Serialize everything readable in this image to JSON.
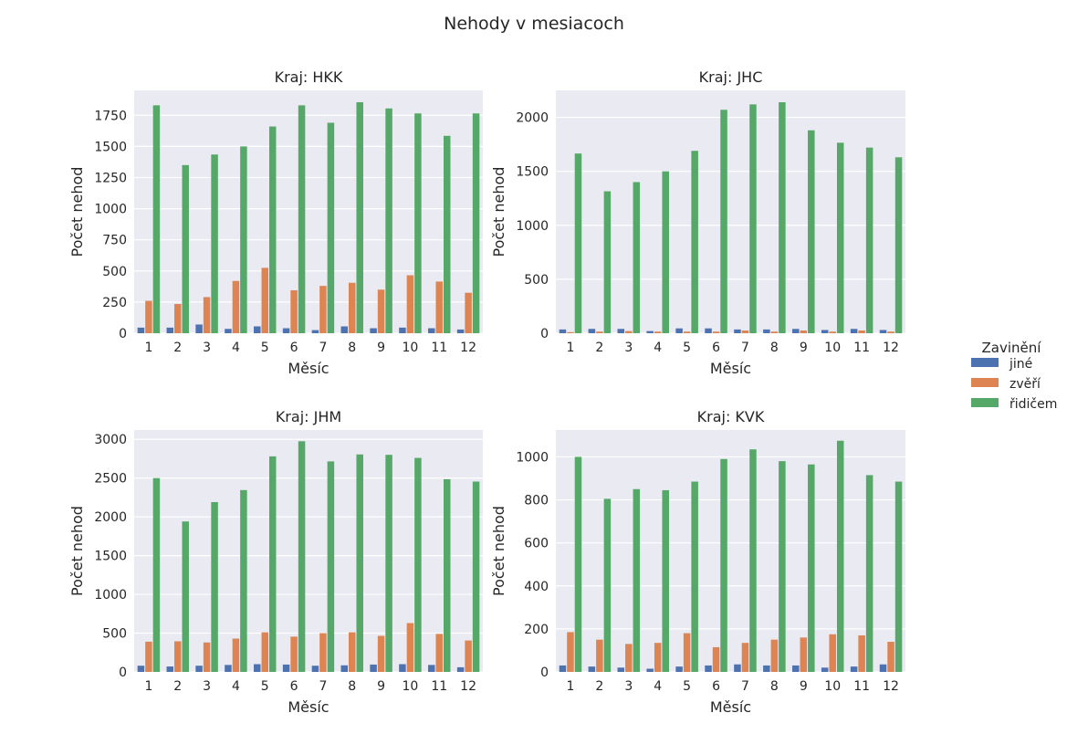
{
  "figure": {
    "title": "Nehody v mesiacoch",
    "legend_title": "Zavinění",
    "legend_placement": "right",
    "colors": {
      "jiné": "#4c72b0",
      "zvěří": "#dd8452",
      "řidičem": "#55a868"
    }
  },
  "chart_data": [
    {
      "type": "bar",
      "title": "Kraj: HKK",
      "xlabel": "Měsíc",
      "ylabel": "Počet nehod",
      "categories": [
        "1",
        "2",
        "3",
        "4",
        "5",
        "6",
        "7",
        "8",
        "9",
        "10",
        "11",
        "12"
      ],
      "ylim": [
        0,
        1950
      ],
      "yticks": [
        0,
        250,
        500,
        750,
        1000,
        1250,
        1500,
        1750
      ],
      "grid": true,
      "series": [
        {
          "name": "jiné",
          "values": [
            45,
            45,
            70,
            35,
            55,
            40,
            25,
            55,
            40,
            45,
            40,
            30
          ]
        },
        {
          "name": "zvěří",
          "values": [
            260,
            235,
            290,
            420,
            525,
            345,
            380,
            405,
            350,
            465,
            415,
            325
          ]
        },
        {
          "name": "řidičem",
          "values": [
            1830,
            1350,
            1435,
            1500,
            1660,
            1830,
            1690,
            1855,
            1805,
            1765,
            1585,
            1765
          ]
        }
      ]
    },
    {
      "type": "bar",
      "title": "Kraj: JHC",
      "xlabel": "Měsíc",
      "ylabel": "Počet nehod",
      "categories": [
        "1",
        "2",
        "3",
        "4",
        "5",
        "6",
        "7",
        "8",
        "9",
        "10",
        "11",
        "12"
      ],
      "ylim": [
        0,
        2250
      ],
      "yticks": [
        0,
        500,
        1000,
        1500,
        2000
      ],
      "grid": true,
      "series": [
        {
          "name": "jiné",
          "values": [
            35,
            40,
            40,
            20,
            45,
            45,
            35,
            35,
            40,
            30,
            40,
            30
          ]
        },
        {
          "name": "zvěří",
          "values": [
            10,
            15,
            20,
            15,
            15,
            15,
            25,
            15,
            25,
            15,
            25,
            15
          ]
        },
        {
          "name": "řidičem",
          "values": [
            1665,
            1315,
            1400,
            1500,
            1690,
            2070,
            2120,
            2140,
            1880,
            1765,
            1720,
            1630
          ]
        }
      ]
    },
    {
      "type": "bar",
      "title": "Kraj: JHM",
      "xlabel": "Měsíc",
      "ylabel": "Počet nehod",
      "categories": [
        "1",
        "2",
        "3",
        "4",
        "5",
        "6",
        "7",
        "8",
        "9",
        "10",
        "11",
        "12"
      ],
      "ylim": [
        0,
        3120
      ],
      "yticks": [
        0,
        500,
        1000,
        1500,
        2000,
        2500,
        3000
      ],
      "grid": true,
      "series": [
        {
          "name": "jiné",
          "values": [
            80,
            70,
            80,
            90,
            100,
            95,
            80,
            85,
            95,
            100,
            90,
            60
          ]
        },
        {
          "name": "zvěří",
          "values": [
            390,
            395,
            380,
            430,
            510,
            455,
            500,
            510,
            465,
            630,
            490,
            405
          ]
        },
        {
          "name": "řidičem",
          "values": [
            2500,
            1940,
            2190,
            2345,
            2780,
            2975,
            2715,
            2805,
            2800,
            2760,
            2485,
            2455
          ]
        }
      ]
    },
    {
      "type": "bar",
      "title": "Kraj: KVK",
      "xlabel": "Měsíc",
      "ylabel": "Počet nehod",
      "categories": [
        "1",
        "2",
        "3",
        "4",
        "5",
        "6",
        "7",
        "8",
        "9",
        "10",
        "11",
        "12"
      ],
      "ylim": [
        0,
        1125
      ],
      "yticks": [
        0,
        200,
        400,
        600,
        800,
        1000
      ],
      "grid": true,
      "series": [
        {
          "name": "jiné",
          "values": [
            30,
            25,
            20,
            15,
            25,
            30,
            35,
            30,
            30,
            20,
            25,
            35
          ]
        },
        {
          "name": "zvěří",
          "values": [
            185,
            150,
            130,
            135,
            180,
            115,
            135,
            150,
            160,
            175,
            170,
            140
          ]
        },
        {
          "name": "řidičem",
          "values": [
            1000,
            805,
            850,
            845,
            885,
            990,
            1035,
            980,
            965,
            1075,
            915,
            885
          ]
        }
      ]
    }
  ]
}
